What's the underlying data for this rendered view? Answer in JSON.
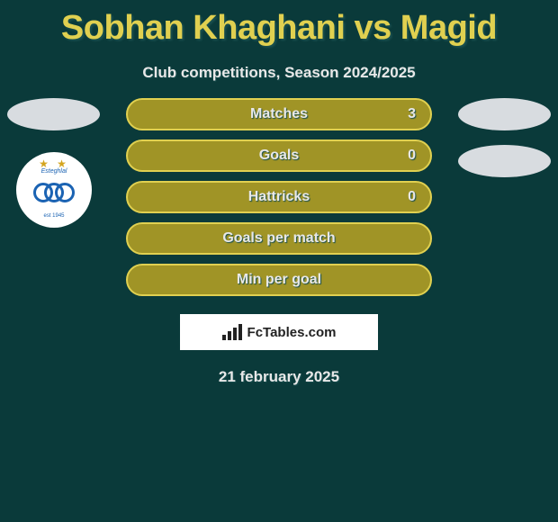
{
  "colors": {
    "background": "#0a3a3a",
    "accent": "#e0d050",
    "bar_bg": "#a09426",
    "bar_border": "#e0d050",
    "text_light": "#e8e8e8",
    "text_shadow": "#1a5050",
    "white": "#ffffff",
    "avatar_fill": "#d8dce0",
    "star_gold": "#d4a520",
    "brand_bg": "#ffffff",
    "brand_dark": "#222222",
    "badge_blue": "#1b63b3"
  },
  "title": "Sobhan Khaghani vs Magid",
  "subtitle": "Club competitions, Season 2024/2025",
  "stats": [
    {
      "label": "Matches",
      "value": "3"
    },
    {
      "label": "Goals",
      "value": "0"
    },
    {
      "label": "Hattricks",
      "value": "0"
    },
    {
      "label": "Goals per match",
      "value": ""
    },
    {
      "label": "Min per goal",
      "value": ""
    }
  ],
  "brand": "FcTables.com",
  "date": "21 february 2025",
  "badge_text_top": "Esteghlal",
  "badge_text_bot": "est 1945"
}
